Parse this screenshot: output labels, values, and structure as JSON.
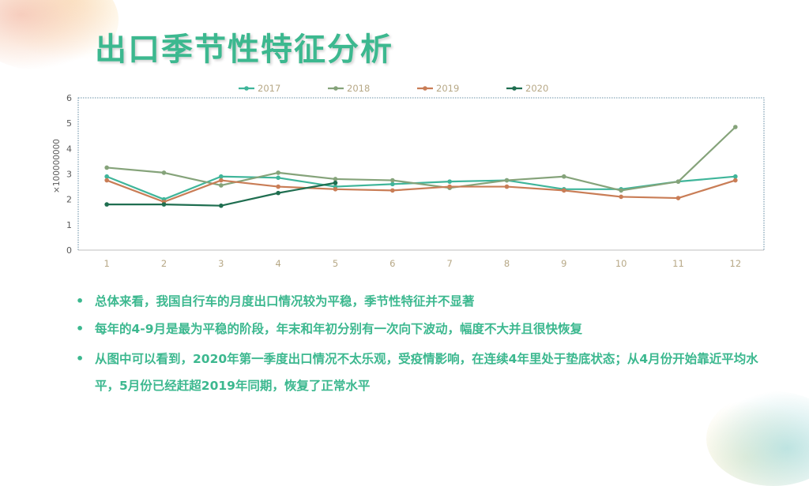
{
  "title": "出口季节性特征分析",
  "chart_data": {
    "type": "line",
    "ylabel": "×100000000",
    "ylim": [
      0,
      6
    ],
    "yticks": [
      0,
      1,
      2,
      3,
      4,
      5,
      6
    ],
    "categories": [
      "1",
      "2",
      "3",
      "4",
      "5",
      "6",
      "7",
      "8",
      "9",
      "10",
      "11",
      "12"
    ],
    "legend_position": "top-center",
    "series": [
      {
        "name": "2017",
        "color": "#3fb59a",
        "values": [
          2.9,
          2.0,
          2.9,
          2.85,
          2.5,
          2.6,
          2.7,
          2.75,
          2.4,
          2.4,
          2.7,
          2.9
        ]
      },
      {
        "name": "2018",
        "color": "#85a37a",
        "values": [
          3.25,
          3.05,
          2.55,
          3.05,
          2.8,
          2.75,
          2.45,
          2.75,
          2.9,
          2.35,
          2.7,
          4.85
        ]
      },
      {
        "name": "2019",
        "color": "#c97d56",
        "values": [
          2.75,
          1.9,
          2.75,
          2.5,
          2.4,
          2.35,
          2.5,
          2.5,
          2.35,
          2.1,
          2.05,
          2.75
        ]
      },
      {
        "name": "2020",
        "color": "#1f6e50",
        "values": [
          1.8,
          1.8,
          1.75,
          2.25,
          2.65,
          null,
          null,
          null,
          null,
          null,
          null,
          null
        ]
      }
    ]
  },
  "bullets": [
    "总体来看，我国自行车的月度出口情况较为平稳，季节性特征并不显著",
    "每年的4-9月是最为平稳的阶段，年末和年初分别有一次向下波动，幅度不大并且很快恢复",
    "从图中可以看到，2020年第一季度出口情况不太乐观，受疫情影响，在连续4年里处于垫底状态；从4月份开始靠近平均水平，5月份已经赶超2019年同期，恢复了正常水平"
  ]
}
